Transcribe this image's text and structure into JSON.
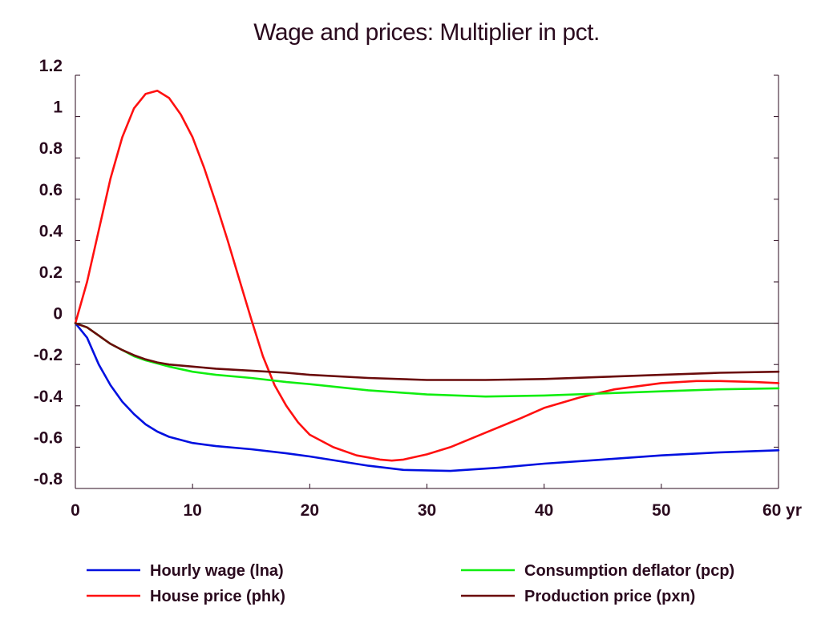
{
  "chart_data": {
    "type": "line",
    "title": "Wage and prices: Multiplier in pct.",
    "xlabel": "",
    "ylabel": "",
    "xlim": [
      0,
      60
    ],
    "ylim": [
      -0.8,
      1.2
    ],
    "x_ticks": [
      0,
      10,
      20,
      30,
      40,
      50,
      60
    ],
    "x_tick_labels": [
      "0",
      "10",
      "20",
      "30",
      "40",
      "50",
      "60 yr"
    ],
    "y_ticks": [
      1.2,
      1,
      0.8,
      0.6,
      0.4,
      0.2,
      0,
      -0.2,
      -0.4,
      -0.6,
      -0.8
    ],
    "y_tick_labels": [
      "1.2",
      "1",
      "0.8",
      "0.6",
      "0.4",
      "0.2",
      "0",
      "-0.2",
      "-0.4",
      "-0.6",
      "-0.8"
    ],
    "zero_line": true,
    "grid": false,
    "legend_position": "bottom",
    "series": [
      {
        "name": "Hourly wage (lna)",
        "color": "#0010e0",
        "x": [
          0,
          1,
          2,
          3,
          4,
          5,
          6,
          7,
          8,
          10,
          12,
          15,
          18,
          20,
          25,
          28,
          32,
          36,
          40,
          45,
          50,
          55,
          60
        ],
        "values": [
          0,
          -0.07,
          -0.2,
          -0.3,
          -0.38,
          -0.44,
          -0.49,
          -0.525,
          -0.55,
          -0.58,
          -0.595,
          -0.61,
          -0.63,
          -0.645,
          -0.69,
          -0.71,
          -0.715,
          -0.7,
          -0.68,
          -0.66,
          -0.64,
          -0.625,
          -0.615
        ]
      },
      {
        "name": "House price (phk)",
        "color": "#ff1010",
        "x": [
          0,
          1,
          2,
          3,
          4,
          5,
          6,
          7,
          8,
          9,
          10,
          11,
          12,
          13,
          14,
          15,
          16,
          17,
          18,
          19,
          20,
          22,
          24,
          26,
          27,
          28,
          30,
          32,
          35,
          38,
          40,
          43,
          46,
          50,
          53,
          55,
          58,
          60
        ],
        "values": [
          0,
          0.2,
          0.45,
          0.7,
          0.9,
          1.04,
          1.11,
          1.125,
          1.09,
          1.01,
          0.9,
          0.75,
          0.58,
          0.4,
          0.21,
          0.02,
          -0.16,
          -0.3,
          -0.4,
          -0.48,
          -0.54,
          -0.6,
          -0.64,
          -0.66,
          -0.665,
          -0.66,
          -0.635,
          -0.6,
          -0.53,
          -0.46,
          -0.41,
          -0.36,
          -0.32,
          -0.29,
          -0.28,
          -0.28,
          -0.285,
          -0.29
        ]
      },
      {
        "name": "Consumption deflator (pcp)",
        "color": "#10ee10",
        "x": [
          0,
          1,
          2,
          3,
          4,
          5,
          6,
          7,
          8,
          10,
          12,
          15,
          18,
          20,
          25,
          30,
          35,
          40,
          45,
          50,
          55,
          60
        ],
        "values": [
          0,
          -0.02,
          -0.06,
          -0.1,
          -0.13,
          -0.16,
          -0.18,
          -0.195,
          -0.21,
          -0.235,
          -0.25,
          -0.265,
          -0.285,
          -0.295,
          -0.325,
          -0.345,
          -0.355,
          -0.35,
          -0.34,
          -0.33,
          -0.32,
          -0.315
        ]
      },
      {
        "name": "Production price (pxn)",
        "color": "#6a0b0b",
        "x": [
          0,
          1,
          2,
          3,
          4,
          5,
          6,
          7,
          8,
          10,
          12,
          15,
          18,
          20,
          25,
          30,
          35,
          40,
          45,
          50,
          55,
          60
        ],
        "values": [
          0,
          -0.02,
          -0.06,
          -0.1,
          -0.13,
          -0.155,
          -0.175,
          -0.19,
          -0.2,
          -0.21,
          -0.22,
          -0.23,
          -0.24,
          -0.25,
          -0.265,
          -0.275,
          -0.275,
          -0.27,
          -0.26,
          -0.25,
          -0.24,
          -0.235
        ]
      }
    ]
  }
}
